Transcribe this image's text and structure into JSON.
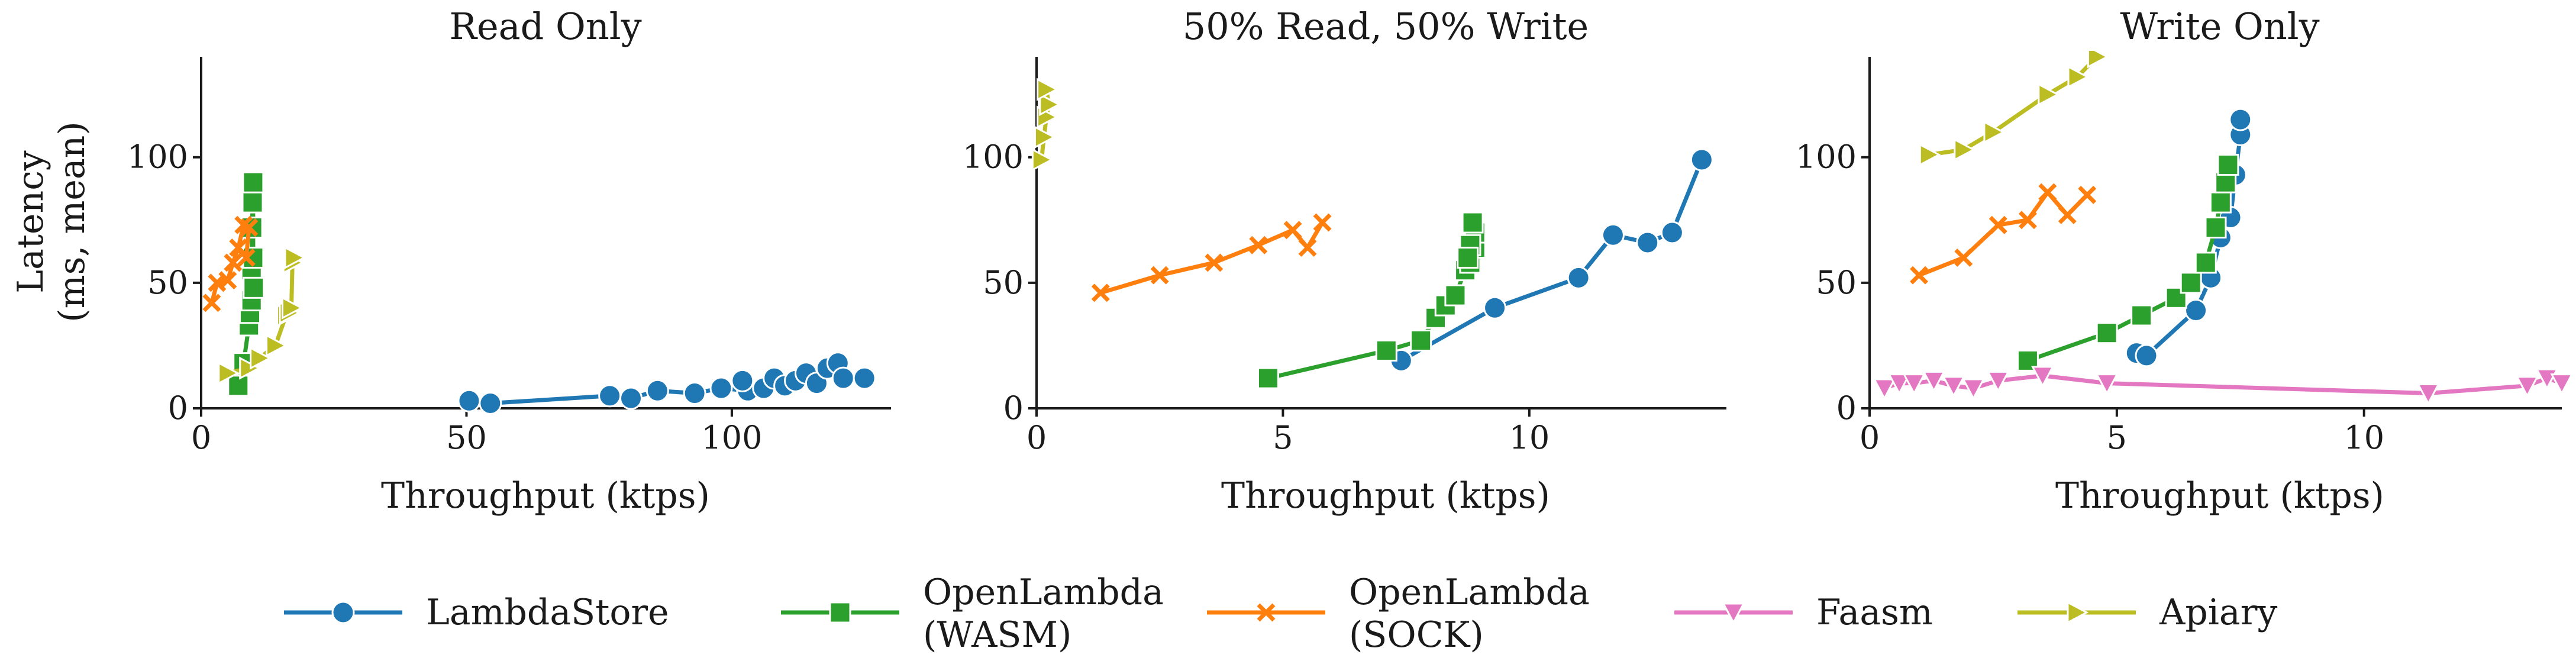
{
  "chart_data": [
    {
      "type": "line",
      "title": "Read Only",
      "xlabel": "Throughput (ktps)",
      "ylabel": "Latency\n(ms, mean)",
      "xlim": [
        0,
        130
      ],
      "ylim": [
        0,
        140
      ],
      "xticks": [
        0,
        50,
        100
      ],
      "yticks": [
        0,
        50,
        100
      ],
      "series": [
        {
          "name": "LambdaStore",
          "x": [
            50.5,
            54.5,
            77,
            81,
            86,
            93,
            98,
            103,
            102,
            106,
            108,
            110,
            112,
            114,
            116,
            118,
            120,
            121,
            125
          ],
          "y": [
            3,
            2,
            5,
            4,
            7,
            6,
            8,
            7,
            11,
            8,
            12,
            9,
            11,
            14,
            10,
            16,
            18,
            12,
            12
          ]
        },
        {
          "name": "OpenLambda (WASM)",
          "x": [
            7,
            8,
            9,
            9.2,
            9.5,
            9.5,
            9.6,
            9.7,
            9.8,
            9.8,
            9.9
          ],
          "y": [
            9,
            18,
            33,
            38,
            43,
            55,
            72,
            82,
            90,
            60,
            48
          ]
        },
        {
          "name": "OpenLambda (SOCK)",
          "x": [
            2,
            3,
            5,
            6,
            7,
            8,
            9,
            8.5
          ],
          "y": [
            42,
            50,
            51,
            58,
            64,
            73,
            72,
            60
          ]
        },
        {
          "name": "Faasm",
          "x": [],
          "y": []
        },
        {
          "name": "Apiary",
          "x": [
            5,
            9,
            11,
            14,
            16,
            16.5,
            17,
            17.2,
            17.5
          ],
          "y": [
            14,
            16,
            20,
            25,
            37,
            38,
            40,
            58,
            60
          ]
        }
      ]
    },
    {
      "type": "line",
      "title": "50% Read, 50% Write",
      "xlabel": "Throughput (ktps)",
      "ylabel": "",
      "xlim": [
        0,
        14
      ],
      "ylim": [
        0,
        140
      ],
      "xticks": [
        0,
        5,
        10
      ],
      "yticks": [
        0,
        50,
        100
      ],
      "series": [
        {
          "name": "LambdaStore",
          "x": [
            7.4,
            9.3,
            11,
            11.7,
            12.4,
            12.9,
            13.5
          ],
          "y": [
            19,
            40,
            52,
            69,
            66,
            70,
            99
          ]
        },
        {
          "name": "OpenLambda (WASM)",
          "x": [
            4.7,
            7.1,
            7.8,
            8.1,
            8.3,
            8.5,
            8.7,
            8.8,
            8.9,
            8.9,
            8.85,
            8.8,
            8.75
          ],
          "y": [
            12,
            23,
            27,
            36,
            41,
            45,
            55,
            58,
            64,
            70,
            74,
            65,
            60
          ]
        },
        {
          "name": "OpenLambda (SOCK)",
          "x": [
            1.3,
            2.5,
            3.6,
            4.5,
            5.2,
            5.5,
            5.8
          ],
          "y": [
            46,
            53,
            58,
            65,
            71,
            64,
            74
          ]
        },
        {
          "name": "Faasm",
          "x": [],
          "y": []
        },
        {
          "name": "Apiary",
          "x": [
            0.1,
            0.15,
            0.2,
            0.25,
            0.2
          ],
          "y": [
            99,
            108,
            116,
            121,
            127
          ]
        }
      ]
    },
    {
      "type": "line",
      "title": "Write Only",
      "xlabel": "Throughput (ktps)",
      "ylabel": "",
      "xlim": [
        0,
        14
      ],
      "ylim": [
        0,
        140
      ],
      "xticks": [
        0,
        5,
        10
      ],
      "yticks": [
        0,
        50,
        100
      ],
      "series": [
        {
          "name": "LambdaStore",
          "x": [
            5.4,
            5.6,
            6.6,
            6.9,
            7.1,
            7.3,
            7.4,
            7.5,
            7.5
          ],
          "y": [
            22,
            21,
            39,
            52,
            68,
            76,
            93,
            109,
            115
          ]
        },
        {
          "name": "OpenLambda (WASM)",
          "x": [
            3.2,
            4.8,
            5.5,
            6.2,
            6.5,
            6.8,
            7.0,
            7.1,
            7.2,
            7.25
          ],
          "y": [
            19,
            30,
            37,
            44,
            50,
            58,
            72,
            82,
            90,
            97
          ]
        },
        {
          "name": "OpenLambda (SOCK)",
          "x": [
            1.0,
            1.9,
            2.6,
            3.2,
            3.6,
            4.0,
            4.4
          ],
          "y": [
            53,
            60,
            73,
            75,
            86,
            77,
            85
          ]
        },
        {
          "name": "Faasm",
          "x": [
            0.3,
            0.6,
            0.9,
            1.3,
            1.7,
            2.1,
            2.6,
            3.5,
            4.8,
            11.3,
            13.3,
            13.7,
            14.0
          ],
          "y": [
            8,
            10,
            10,
            11,
            9,
            8,
            11,
            13,
            10,
            6,
            9,
            12,
            10
          ]
        },
        {
          "name": "Apiary",
          "x": [
            1.2,
            1.9,
            2.5,
            3.6,
            4.2,
            4.6
          ],
          "y": [
            101,
            103,
            110,
            125,
            132,
            140
          ]
        }
      ]
    }
  ],
  "legend": {
    "placement": "bottom",
    "entries": [
      {
        "label_line1": "LambdaStore",
        "label_line2": "",
        "color": "#1f77b4",
        "marker": "circle"
      },
      {
        "label_line1": "OpenLambda",
        "label_line2": "(WASM)",
        "color": "#2ca02c",
        "marker": "square"
      },
      {
        "label_line1": "OpenLambda",
        "label_line2": "(SOCK)",
        "color": "#ff7f0e",
        "marker": "x"
      },
      {
        "label_line1": "Faasm",
        "label_line2": "",
        "color": "#e377c2",
        "marker": "triangle-down"
      },
      {
        "label_line1": "Apiary",
        "label_line2": "",
        "color": "#bcbd22",
        "marker": "triangle-right"
      }
    ]
  },
  "ylabel_line1": "Latency",
  "ylabel_line2": "(ms, mean)"
}
